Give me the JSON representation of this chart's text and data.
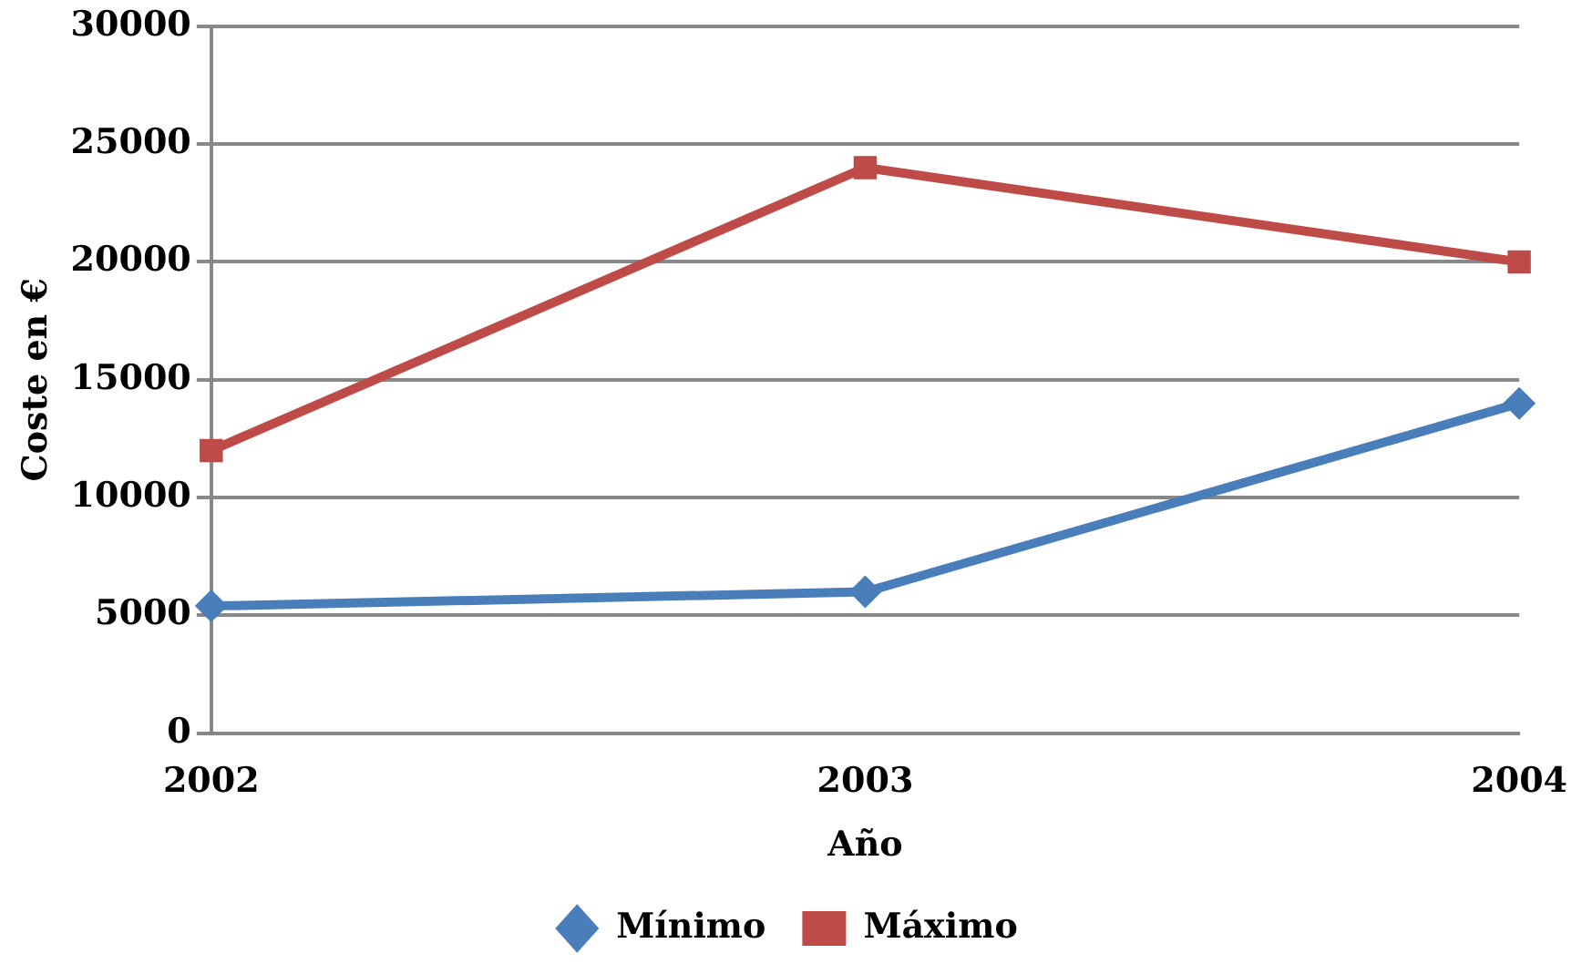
{
  "chart_data": {
    "type": "line",
    "xlabel": "Año",
    "ylabel": "Coste en €",
    "categories": [
      "2002",
      "2003",
      "2004"
    ],
    "series": [
      {
        "name": "Mínimo",
        "color": "#4a7ebb",
        "values": [
          5400,
          6000,
          14000
        ],
        "marker": "diamond"
      },
      {
        "name": "Máximo",
        "color": "#be4b48",
        "values": [
          12000,
          24000,
          20000
        ],
        "marker": "square"
      }
    ],
    "ylim": [
      0,
      30000
    ],
    "yticks": [
      0,
      5000,
      10000,
      15000,
      20000,
      25000,
      30000
    ],
    "grid": "y",
    "legend": "bottom",
    "line_style": "solid"
  }
}
